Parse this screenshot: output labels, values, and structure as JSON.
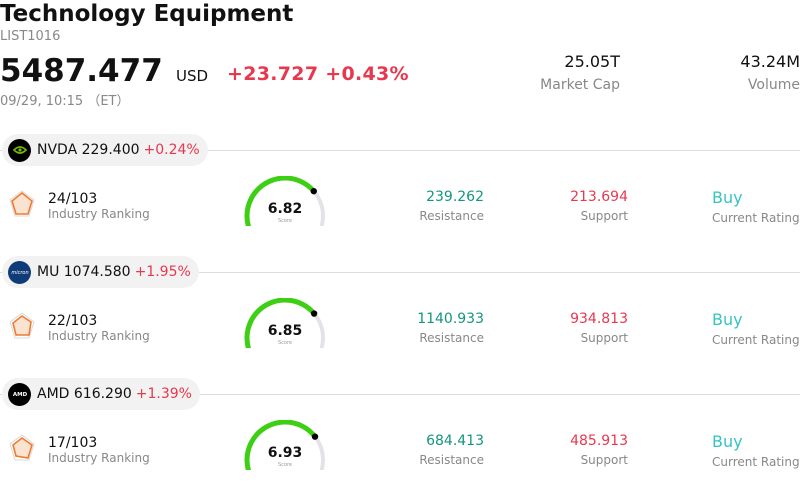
{
  "header": {
    "title": "Technology Equipment",
    "code": "LIST1016",
    "price": "5487.477",
    "currency": "USD",
    "change": "+23.727 +0.43%",
    "time": "09/29, 10:15 （ET）",
    "market_cap_value": "25.05T",
    "market_cap_label": "Market Cap",
    "volume_value": "43.24M",
    "volume_label": "Volume"
  },
  "colors": {
    "up_red": "#e8384f",
    "resistance_green": "#14967e",
    "buy_teal": "#36c4bf",
    "gauge_green": "#3ccf14"
  },
  "stocks": [
    {
      "ticker_line": "NVDA 229.400",
      "change": "+0.24%",
      "logo_icon": "nvidia-logo-icon",
      "ranking": "24/103",
      "ranking_label": "Industry Ranking",
      "score": "6.82",
      "score_fraction": 0.682,
      "score_label": "Score",
      "resistance": "239.262",
      "resistance_label": "Resistance",
      "support": "213.694",
      "support_label": "Support",
      "rating": "Buy",
      "rating_label": "Current Rating"
    },
    {
      "ticker_line": "MU 1074.580",
      "change": "+1.95%",
      "logo_icon": "micron-logo-icon",
      "ranking": "22/103",
      "ranking_label": "Industry Ranking",
      "score": "6.85",
      "score_fraction": 0.685,
      "score_label": "Score",
      "resistance": "1140.933",
      "resistance_label": "Resistance",
      "support": "934.813",
      "support_label": "Support",
      "rating": "Buy",
      "rating_label": "Current Rating"
    },
    {
      "ticker_line": "AMD 616.290",
      "change": "+1.39%",
      "logo_icon": "amd-logo-icon",
      "ranking": "17/103",
      "ranking_label": "Industry Ranking",
      "score": "6.93",
      "score_fraction": 0.693,
      "score_label": "Score",
      "resistance": "684.413",
      "resistance_label": "Resistance",
      "support": "485.913",
      "support_label": "Support",
      "rating": "Buy",
      "rating_label": "Current Rating"
    }
  ]
}
